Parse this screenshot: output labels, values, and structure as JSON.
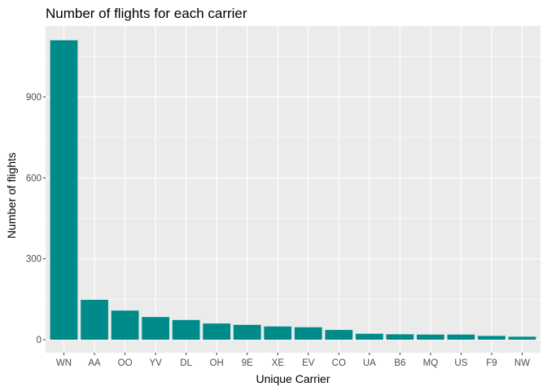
{
  "chart_data": {
    "type": "bar",
    "title": "Number of flights for each carrier",
    "xlabel": "Unique Carrier",
    "ylabel": "Number of flights",
    "categories": [
      "WN",
      "AA",
      "OO",
      "YV",
      "DL",
      "OH",
      "9E",
      "XE",
      "EV",
      "CO",
      "UA",
      "B6",
      "MQ",
      "US",
      "F9",
      "NW"
    ],
    "values": [
      1110,
      148,
      108,
      84,
      73,
      60,
      55,
      49,
      46,
      36,
      22,
      20,
      19,
      19,
      14,
      11
    ],
    "ylim": [
      0,
      1165
    ],
    "yticks": [
      0,
      300,
      600,
      900
    ],
    "ytick_labels": [
      "0",
      "300",
      "600",
      "900"
    ],
    "bar_color": "#008B8B",
    "panel_background": "#EBEBEB",
    "grid": true,
    "legend": "none"
  }
}
